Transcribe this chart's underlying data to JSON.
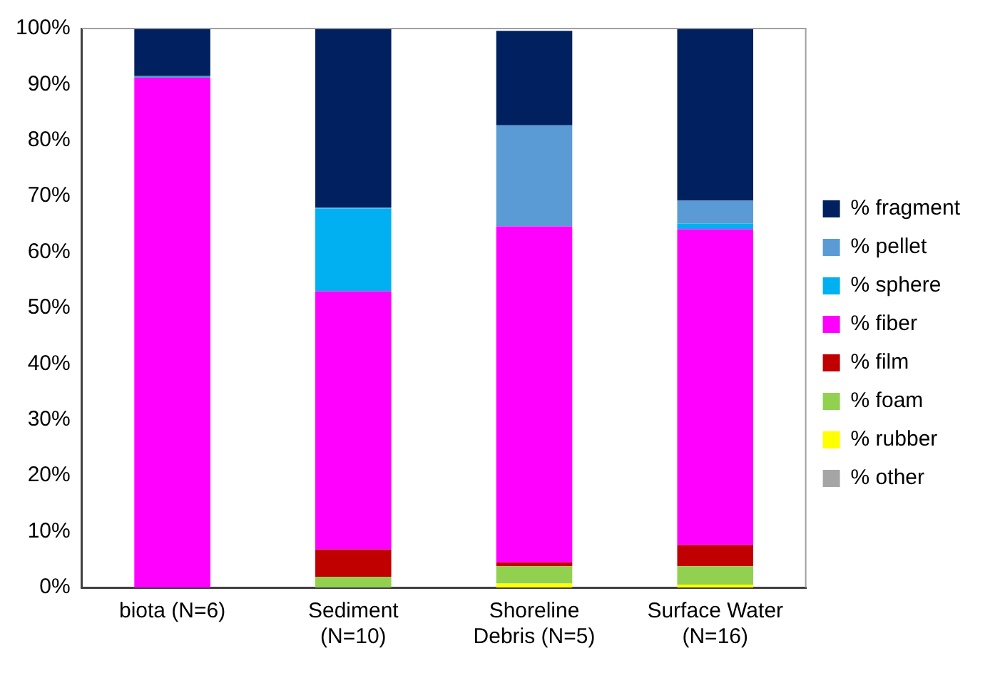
{
  "chart_data": {
    "type": "bar",
    "stacked": true,
    "categories": [
      "biota (N=6)",
      "Sediment\n(N=10)",
      "Shoreline\nDebris (N=5)",
      "Surface Water\n(N=16)"
    ],
    "series": [
      {
        "name": "% other",
        "color": "#a5a5a5",
        "values": [
          0,
          0,
          0,
          0
        ]
      },
      {
        "name": "% rubber",
        "color": "#ffff00",
        "values": [
          0,
          0,
          0.7,
          0.5
        ]
      },
      {
        "name": "% foam",
        "color": "#92d050",
        "values": [
          0,
          1.9,
          3.1,
          3.3
        ]
      },
      {
        "name": "% film",
        "color": "#c00000",
        "values": [
          0,
          4.9,
          0.7,
          3.8
        ]
      },
      {
        "name": "% fiber",
        "color": "#ff00ff",
        "values": [
          91.2,
          46.2,
          60.1,
          56.5
        ]
      },
      {
        "name": "% sphere",
        "color": "#00b0f0",
        "values": [
          0,
          14.8,
          0,
          1.0
        ]
      },
      {
        "name": "% pellet",
        "color": "#5b9bd5",
        "values": [
          0.3,
          0.2,
          18.1,
          4.1
        ]
      },
      {
        "name": "% fragment",
        "color": "#002060",
        "values": [
          8.5,
          32,
          16.9,
          30.8
        ]
      }
    ],
    "ylim": [
      0,
      100
    ],
    "yticks": [
      {
        "value": 0,
        "label": "0%"
      },
      {
        "value": 10,
        "label": "10%"
      },
      {
        "value": 20,
        "label": "20%"
      },
      {
        "value": 30,
        "label": "30%"
      },
      {
        "value": 40,
        "label": "40%"
      },
      {
        "value": 50,
        "label": "50%"
      },
      {
        "value": 60,
        "label": "60%"
      },
      {
        "value": 70,
        "label": "70%"
      },
      {
        "value": 80,
        "label": "80%"
      },
      {
        "value": 90,
        "label": "90%"
      },
      {
        "value": 100,
        "label": "100%"
      }
    ],
    "grid": false,
    "legend": "right"
  }
}
